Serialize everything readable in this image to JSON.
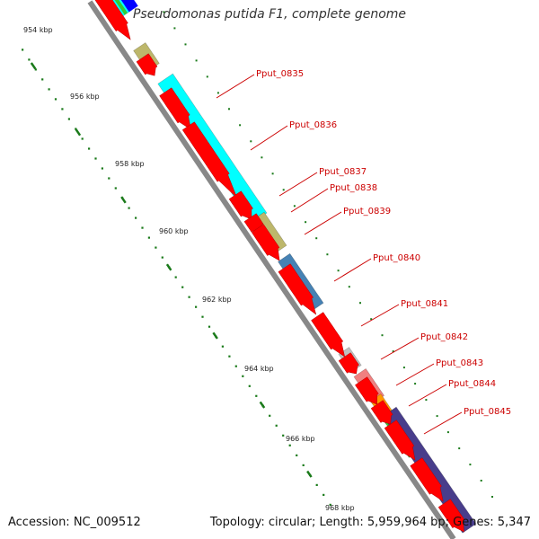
{
  "title": "Pseudomonas putida F1, complete genome",
  "footer": {
    "accession": "Accession: NC_009512",
    "summary": "Topology: circular; Length: 5,959,964 bp; Genes: 5,347"
  },
  "scale_labels": [
    "954 kbp",
    "956 kbp",
    "958 kbp",
    "960 kbp",
    "962 kbp",
    "964 kbp",
    "966 kbp",
    "968 kbp"
  ],
  "gene_labels": [
    "Pput_0835",
    "Pput_0836",
    "Pput_0837",
    "Pput_0838",
    "Pput_0839",
    "Pput_0840",
    "Pput_0841",
    "Pput_0842",
    "Pput_0843",
    "Pput_0844",
    "Pput_0845"
  ],
  "colors": {
    "cds": "#ff0000",
    "backbone": "#888888",
    "scale_dots": "#1a7a1a",
    "label": "#cc0000",
    "cyan": "#00ffff",
    "khaki": "#bdb76b",
    "steelblue": "#4682b4",
    "gray": "#c0c0c0",
    "pink": "#f08080",
    "orange": "#ff9900",
    "green": "#33cc33",
    "darkslateblue": "#483d8b",
    "blue": "#0000ff"
  }
}
